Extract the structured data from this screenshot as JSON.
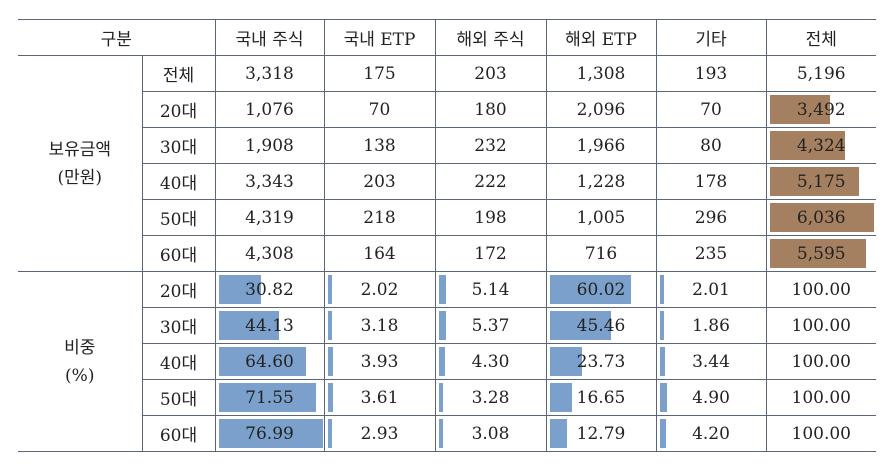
{
  "header": {
    "category": "구분",
    "columns": [
      "국내 주식",
      "국내 ETP",
      "해외 주식",
      "해외 ETP",
      "기타",
      "전체"
    ]
  },
  "groups": [
    {
      "label_line1": "보유금액",
      "label_line2": "(만원)",
      "rows": [
        {
          "age": "전체",
          "values": [
            "3,318",
            "175",
            "203",
            "1,308",
            "193",
            "5,196"
          ]
        },
        {
          "age": "20대",
          "values": [
            "1,076",
            "70",
            "180",
            "2,096",
            "70",
            "3,492"
          ]
        },
        {
          "age": "30대",
          "values": [
            "1,908",
            "138",
            "232",
            "1,966",
            "80",
            "4,324"
          ]
        },
        {
          "age": "40대",
          "values": [
            "3,343",
            "203",
            "222",
            "1,228",
            "178",
            "5,175"
          ]
        },
        {
          "age": "50대",
          "values": [
            "4,319",
            "218",
            "198",
            "1,005",
            "296",
            "6,036"
          ]
        },
        {
          "age": "60대",
          "values": [
            "4,308",
            "164",
            "172",
            "716",
            "235",
            "5,595"
          ]
        }
      ]
    },
    {
      "label_line1": "비중",
      "label_line2": "(%)",
      "rows": [
        {
          "age": "20대",
          "values": [
            "30.82",
            "2.02",
            "5.14",
            "60.02",
            "2.01",
            "100.00"
          ]
        },
        {
          "age": "30대",
          "values": [
            "44.13",
            "3.18",
            "5.37",
            "45.46",
            "1.86",
            "100.00"
          ]
        },
        {
          "age": "40대",
          "values": [
            "64.60",
            "3.93",
            "4.30",
            "23.73",
            "3.44",
            "100.00"
          ]
        },
        {
          "age": "50대",
          "values": [
            "71.55",
            "3.61",
            "3.28",
            "16.65",
            "4.90",
            "100.00"
          ]
        },
        {
          "age": "60대",
          "values": [
            "76.99",
            "2.93",
            "3.08",
            "12.79",
            "4.20",
            "100.00"
          ]
        }
      ]
    }
  ],
  "data_bars": {
    "holding_total_color": "#a58060",
    "share_color": "#7aa0cb",
    "holding_total_max": 6036,
    "share_max": 76.99
  }
}
